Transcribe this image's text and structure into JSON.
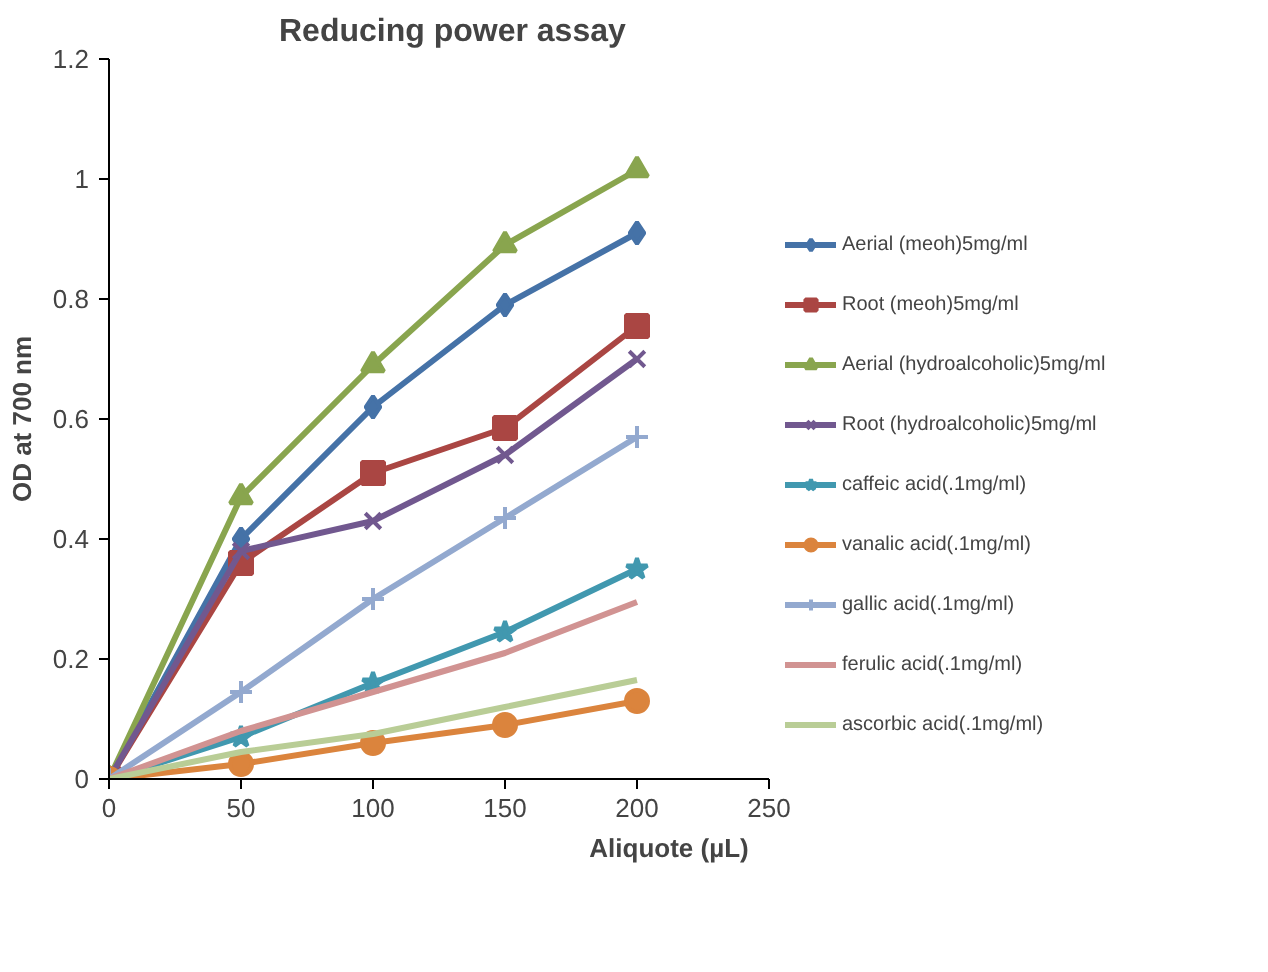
{
  "chart_data": {
    "type": "line",
    "title": "Reducing power assay",
    "xlabel": "Aliquote (µL)",
    "ylabel": "OD at 700 nm",
    "x": [
      0,
      50,
      100,
      150,
      200
    ],
    "series": [
      {
        "name": "Aerial (meoh)5mg/ml",
        "color": "#4572a7",
        "marker": "diamond",
        "values": [
          0,
          0.4,
          0.62,
          0.79,
          0.91
        ]
      },
      {
        "name": "Root (meoh)5mg/ml",
        "color": "#aa4643",
        "marker": "square",
        "values": [
          0,
          0.36,
          0.51,
          0.585,
          0.755
        ]
      },
      {
        "name": "Aerial (hydroalcoholic)5mg/ml",
        "color": "#89a54e",
        "marker": "triangle",
        "values": [
          0,
          0.47,
          0.69,
          0.89,
          1.015
        ]
      },
      {
        "name": "Root (hydroalcoholic)5mg/ml",
        "color": "#71588f",
        "marker": "x",
        "values": [
          0,
          0.38,
          0.43,
          0.54,
          0.7
        ]
      },
      {
        "name": "caffeic acid(.1mg/ml)",
        "color": "#4198af",
        "marker": "star",
        "values": [
          0,
          0.07,
          0.16,
          0.245,
          0.35
        ]
      },
      {
        "name": "vanalic acid(.1mg/ml)",
        "color": "#db843d",
        "marker": "circle",
        "values": [
          0,
          0.025,
          0.06,
          0.09,
          0.13
        ]
      },
      {
        "name": "gallic acid(.1mg/ml)",
        "color": "#93a9cf",
        "marker": "cross",
        "values": [
          0,
          0.145,
          0.3,
          0.435,
          0.57
        ]
      },
      {
        "name": "ferulic acid(.1mg/ml)",
        "color": "#d19392",
        "marker": "none",
        "values": [
          0,
          0.08,
          0.145,
          0.21,
          0.295
        ]
      },
      {
        "name": "ascorbic acid(.1mg/ml)",
        "color": "#b9cd96",
        "marker": "none",
        "values": [
          0,
          0.045,
          0.075,
          0.12,
          0.165
        ]
      }
    ],
    "xlim": [
      0,
      250
    ],
    "xticks": [
      0,
      50,
      100,
      150,
      200,
      250
    ],
    "ylim": [
      0,
      1.2
    ],
    "yticks": [
      0,
      0.2,
      0.4,
      0.6,
      0.8,
      1,
      1.2
    ],
    "grid": false,
    "legend": "right",
    "line_style": "solid"
  }
}
